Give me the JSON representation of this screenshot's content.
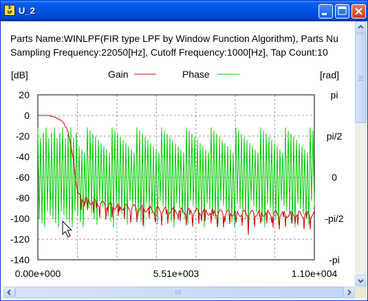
{
  "window": {
    "title": "U_2"
  },
  "info": {
    "line1": "Parts Name:WINLPF(FIR type LPF by Window Function Algorithm), Parts Nu",
    "line2": "Sampling Frequency:22050[Hz], Cutoff Frequency:1000[Hz], Tap Count:10"
  },
  "colors": {
    "gain": "#cc0000",
    "phase": "#00cc00",
    "grid": "#999999",
    "titlebar": "#0054e3"
  },
  "icons": {
    "app": "dsp-icon",
    "minimize": "minimize-icon",
    "maximize": "maximize-icon",
    "close": "close-icon",
    "cursor": "mouse-pointer-icon"
  },
  "chart_data": {
    "type": "line",
    "ylabel": "[dB]",
    "y2label": "[rad]",
    "legend_placement": "top-center",
    "grid": true,
    "xlim": [
      0,
      11025
    ],
    "ylim": [
      -140,
      20
    ],
    "y2lim": [
      -3.1416,
      3.1416
    ],
    "y_ticks": [
      "20",
      "0",
      "-20",
      "-40",
      "-60",
      "-80",
      "-100",
      "-120",
      "-140"
    ],
    "y2_ticks": [
      "pi",
      "pi/2",
      "0",
      "-pi/2",
      "-pi"
    ],
    "x_ticks": [
      "0.00e+000",
      "5.51e+003",
      "1.10e+004"
    ],
    "series": [
      {
        "name": "Gain",
        "axis": "left",
        "x": [
          0,
          200,
          400,
          600,
          800,
          1000,
          1200,
          1400,
          1600,
          2000,
          3000,
          4000,
          5000,
          6000,
          7000,
          8000,
          9000,
          10000,
          11025
        ],
        "y": [
          0,
          0,
          0,
          -1,
          -3,
          -6,
          -15,
          -40,
          -78,
          -83,
          -88,
          -90,
          -92,
          -93,
          -94,
          -95,
          -95,
          -96,
          -96
        ]
      },
      {
        "name": "Phase",
        "axis": "right",
        "x": [
          0,
          11025
        ],
        "y_range": [
          -1.9,
          1.9
        ]
      }
    ]
  }
}
